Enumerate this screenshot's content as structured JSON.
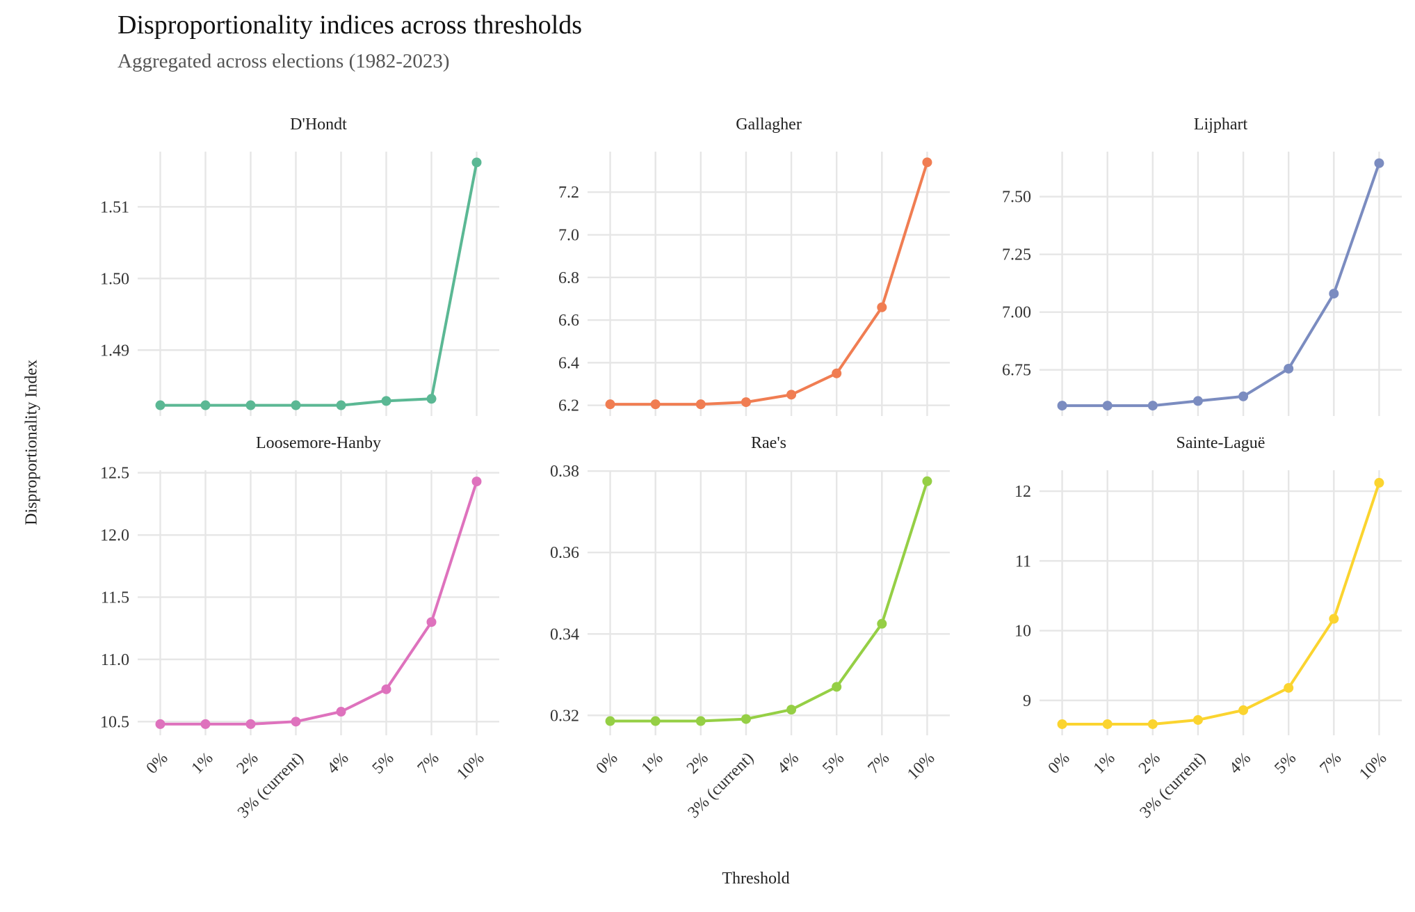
{
  "title": "Disproportionality indices across thresholds",
  "subtitle": "Aggregated across elections (1982-2023)",
  "xlabel": "Threshold",
  "ylabel": "Disproportionality Index",
  "chart_data": {
    "type": "line",
    "layout": "facet-grid 2x3, free y scales",
    "title": "Disproportionality indices across thresholds",
    "subtitle": "Aggregated across elections (1982-2023)",
    "xlabel": "Threshold",
    "ylabel": "Disproportionality Index",
    "categories": [
      "0%",
      "1%",
      "2%",
      "3% (current)",
      "4%",
      "5%",
      "7%",
      "10%"
    ],
    "grid": true,
    "legend": "none",
    "facets": [
      {
        "name": "D'Hondt",
        "color": "#5bb894",
        "values": [
          1.4823,
          1.4823,
          1.4823,
          1.4823,
          1.4823,
          1.4829,
          1.4832,
          1.5162
        ],
        "ylim": [
          1.4808,
          1.5177
        ],
        "yticks": [
          1.49,
          1.5,
          1.51
        ],
        "tick_labels": [
          "1.49",
          "1.50",
          "1.51"
        ]
      },
      {
        "name": "Gallagher",
        "color": "#f07d52",
        "values": [
          6.205,
          6.205,
          6.205,
          6.215,
          6.25,
          6.35,
          6.66,
          7.34
        ],
        "ylim": [
          6.15,
          7.39
        ],
        "yticks": [
          6.2,
          6.4,
          6.6,
          6.8,
          7.0,
          7.2
        ],
        "tick_labels": [
          "6.2",
          "6.4",
          "6.6",
          "6.8",
          "7.0",
          "7.2"
        ]
      },
      {
        "name": "Lijphart",
        "color": "#7b8cc0",
        "values": [
          6.595,
          6.595,
          6.595,
          6.615,
          6.635,
          6.755,
          7.08,
          7.645
        ],
        "ylim": [
          6.55,
          7.695
        ],
        "yticks": [
          6.75,
          7.0,
          7.25,
          7.5
        ],
        "tick_labels": [
          "6.75",
          "7.00",
          "7.25",
          "7.50"
        ]
      },
      {
        "name": "Loosemore-Hanby",
        "color": "#de72bd",
        "values": [
          10.48,
          10.48,
          10.48,
          10.5,
          10.58,
          10.76,
          11.3,
          12.43
        ],
        "ylim": [
          10.39,
          12.52
        ],
        "yticks": [
          10.5,
          11.0,
          11.5,
          12.0,
          12.5
        ],
        "tick_labels": [
          "10.5",
          "11.0",
          "11.5",
          "12.0",
          "12.5"
        ]
      },
      {
        "name": "Rae's",
        "color": "#95cf45",
        "values": [
          0.3186,
          0.3186,
          0.3186,
          0.3191,
          0.3214,
          0.327,
          0.3425,
          0.3775
        ],
        "ylim": [
          0.3151,
          0.3802
        ],
        "yticks": [
          0.32,
          0.34,
          0.36,
          0.38
        ],
        "tick_labels": [
          "0.32",
          "0.34",
          "0.36",
          "0.38"
        ]
      },
      {
        "name": "Sainte-Laguë",
        "color": "#fbd42f",
        "values": [
          8.66,
          8.66,
          8.66,
          8.72,
          8.86,
          9.18,
          10.17,
          12.12
        ],
        "ylim": [
          8.5,
          12.3
        ],
        "yticks": [
          9,
          10,
          11,
          12
        ],
        "tick_labels": [
          "9",
          "10",
          "11",
          "12"
        ]
      }
    ]
  }
}
